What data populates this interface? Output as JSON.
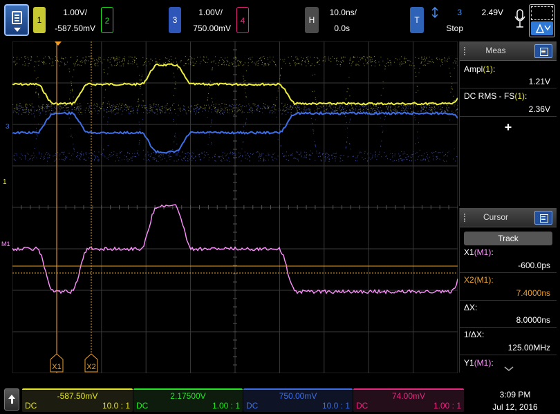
{
  "top": {
    "ch1": {
      "num": "1",
      "scale": "1.00V/",
      "offset": "-587.50mV",
      "color": "#e6e61e"
    },
    "ch2": {
      "num": "2",
      "color": "#22e622"
    },
    "ch3": {
      "num": "3",
      "scale": "1.00V/",
      "offset": "750.00mV",
      "color": "#3c6fe6"
    },
    "ch4": {
      "num": "4",
      "color": "#e62880"
    },
    "horizontal": {
      "badge": "H",
      "timebase": "10.0ns/",
      "delay": "0.0s"
    },
    "trigger": {
      "badge": "T",
      "source": "3",
      "level": "2.49V",
      "state": "Stop"
    },
    "auto_label": "A"
  },
  "screen_labels": {
    "ch1_marker": "1",
    "ch3_marker": "3",
    "math_marker": "M1",
    "x1": "X1",
    "x2": "X2"
  },
  "meas": {
    "title": "Meas",
    "items": [
      {
        "label": "Ampl",
        "src": "(1)",
        "suffix": ":",
        "value": "1.21V"
      },
      {
        "label": "DC RMS - FS",
        "src": "(1)",
        "suffix": ":",
        "value": "2.36V"
      }
    ],
    "add_label": "+"
  },
  "cursor": {
    "title": "Cursor",
    "mode": "Track",
    "x1_label": "X1",
    "x1_src": "(M1)",
    "x1_value": "-600.0ps",
    "x2_label": "X2",
    "x2_src": "(M1)",
    "x2_value": "7.4000ns",
    "dx_label": "ΔX:",
    "dx_value": "8.0000ns",
    "inv_label": "1/ΔX:",
    "inv_value": "125.00MHz",
    "y1_label": "Y1",
    "y1_src": "(M1)",
    "colors": {
      "x1": "#f0a028",
      "x2": "#f0a028",
      "math": "#ff88ff"
    }
  },
  "bottom": {
    "channels": [
      {
        "offset": "-587.50mV",
        "coupling": "DC",
        "probe": "10.0 : 1",
        "color": "#e6e61e"
      },
      {
        "offset": "2.17500V",
        "coupling": "DC",
        "probe": "1.00 : 1",
        "color": "#22e622"
      },
      {
        "offset": "750.00mV",
        "coupling": "DC",
        "probe": "10.0 : 1",
        "color": "#3c6fe6"
      },
      {
        "offset": "74.00mV",
        "coupling": "DC",
        "probe": "1.00 : 1",
        "color": "#e62880"
      }
    ],
    "time": "3:09 PM",
    "date": "Jul 12, 2016"
  }
}
